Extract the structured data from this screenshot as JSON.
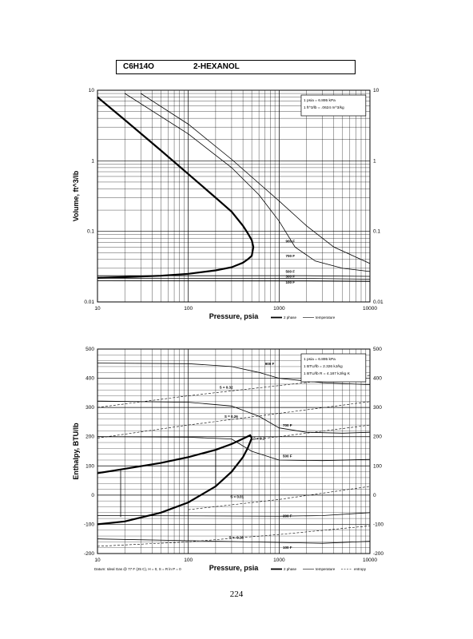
{
  "header": {
    "formula": "C6H14O",
    "name": "2-HEXANOL"
  },
  "page_number": "224",
  "chart_data": [
    {
      "type": "line",
      "title": "",
      "xlabel": "Pressure,  psia",
      "ylabel": "Volume, ft^3/lb",
      "xscale": "log",
      "yscale": "log",
      "xlim": [
        10,
        10000
      ],
      "ylim": [
        0.01,
        10
      ],
      "xticks": [
        "10",
        "100",
        "1000",
        "10000"
      ],
      "yticks": [
        "0.01",
        "0.1",
        "1",
        "10"
      ],
      "yticks_right": [
        "0.01",
        "0.1",
        "1",
        "10"
      ],
      "grid": true,
      "conversions": [
        "1 psia  =  6.895 kPa",
        "1 ft^3/lb  =  .0624 m^3/kg"
      ],
      "legend": {
        "placement": "bottom-right",
        "items": [
          "2 phase",
          "temperature"
        ]
      },
      "series": [
        {
          "kind": "2 phase",
          "x": [
            10,
            20,
            50,
            100,
            200,
            300,
            400,
            450,
            500,
            520,
            500,
            450,
            400,
            300,
            200,
            100,
            50,
            20,
            10
          ],
          "y": [
            8,
            3.8,
            1.4,
            0.65,
            0.3,
            0.19,
            0.12,
            0.095,
            0.075,
            0.06,
            0.045,
            0.04,
            0.036,
            0.031,
            0.028,
            0.025,
            0.0235,
            0.0225,
            0.022
          ]
        },
        {
          "name": "900 F",
          "x": [
            30,
            100,
            300,
            600,
            1000,
            2000,
            4000,
            10000
          ],
          "y": [
            9,
            3.3,
            1.05,
            0.48,
            0.27,
            0.12,
            0.06,
            0.035
          ]
        },
        {
          "name": "700 F",
          "x": [
            20,
            100,
            300,
            600,
            1000,
            1500,
            2500,
            5000,
            10000
          ],
          "y": [
            9,
            2.4,
            0.8,
            0.33,
            0.14,
            0.06,
            0.038,
            0.03,
            0.027
          ]
        },
        {
          "name": "500 F",
          "x": [
            10,
            2000,
            10000
          ],
          "y": [
            0.0235,
            0.0235,
            0.023
          ]
        },
        {
          "name": "300 F",
          "x": [
            10,
            2000,
            10000
          ],
          "y": [
            0.0217,
            0.0216,
            0.021
          ]
        },
        {
          "name": "100 F",
          "x": [
            10,
            2000,
            10000
          ],
          "y": [
            0.0199,
            0.0198,
            0.0195
          ]
        }
      ]
    },
    {
      "type": "line",
      "title": "",
      "xlabel": "Pressure,  psia",
      "ylabel": "Enthalpy, BTU/lb",
      "xscale": "log",
      "yscale": "linear",
      "xlim": [
        10,
        10000
      ],
      "ylim": [
        -200,
        500
      ],
      "xticks": [
        "10",
        "100",
        "1000",
        "10000"
      ],
      "yticks": [
        "-200",
        "-100",
        "0",
        "100",
        "200",
        "300",
        "400",
        "500"
      ],
      "yticks_right": [
        "-200",
        "-100",
        "0",
        "100",
        "200",
        "300",
        "400",
        "500"
      ],
      "grid": true,
      "conversions": [
        "1 psia  =  6.895 kPa",
        "1 BTU/lb  =  2.326 kJ/kg",
        "1 BTU/lb R  =  4.187 kJ/kg K"
      ],
      "legend": {
        "placement": "bottom-right",
        "items": [
          "2 phase",
          "temperature",
          "entropy"
        ]
      },
      "datum": "Datum: Ideal Gas @ 77 F (25 C),  H = 0,  S = R ln P = 0",
      "series": [
        {
          "kind": "2 phase",
          "x": [
            10,
            20,
            50,
            100,
            200,
            300,
            400,
            480,
            500,
            450,
            400,
            300,
            200,
            100,
            50,
            20,
            10
          ],
          "y": [
            75,
            90,
            110,
            130,
            155,
            175,
            193,
            205,
            195,
            160,
            130,
            80,
            30,
            -25,
            -60,
            -90,
            -100
          ]
        },
        {
          "name": "900 F",
          "x": [
            10,
            100,
            300,
            600,
            1000,
            3000,
            10000
          ],
          "y": [
            452,
            450,
            440,
            420,
            400,
            385,
            378
          ]
        },
        {
          "name": "700 F",
          "x": [
            10,
            100,
            300,
            600,
            1000,
            2000,
            5000,
            10000
          ],
          "y": [
            322,
            318,
            305,
            270,
            230,
            215,
            212,
            215
          ]
        },
        {
          "name": "500 F",
          "x": [
            10,
            100,
            300,
            500,
            1000,
            3000,
            10000
          ],
          "y": [
            200,
            198,
            192,
            150,
            120,
            118,
            122
          ]
        },
        {
          "name": "300 F",
          "x": [
            10,
            1000,
            3000,
            10000
          ],
          "y": [
            -70,
            -72,
            -70,
            -60
          ]
        },
        {
          "name": "100 F",
          "x": [
            10,
            1000,
            3000,
            10000
          ],
          "y": [
            -150,
            -162,
            -165,
            -158
          ]
        },
        {
          "name": "S = 0.32",
          "kind": "entropy",
          "x": [
            10,
            100,
            1000,
            10000
          ],
          "y": [
            300,
            340,
            375,
            410
          ]
        },
        {
          "name": "S = 0.26",
          "kind": "entropy",
          "x": [
            10,
            100,
            1000,
            10000
          ],
          "y": [
            195,
            240,
            280,
            320
          ]
        },
        {
          "name": "S = 0.2",
          "kind": "entropy",
          "x": [
            500,
            1000,
            10000
          ],
          "y": [
            190,
            200,
            240
          ]
        },
        {
          "name": "S = 0.01",
          "kind": "entropy",
          "x": [
            100,
            1000,
            10000
          ],
          "y": [
            -50,
            -15,
            30
          ]
        },
        {
          "name": "S = -0.16",
          "kind": "entropy",
          "x": [
            10,
            100,
            1000,
            10000
          ],
          "y": [
            -175,
            -160,
            -135,
            -105
          ]
        }
      ],
      "vertical_lines": [
        {
          "x": 18,
          "y": [
            -75,
            90
          ]
        },
        {
          "x": 200,
          "y": [
            30,
            155
          ]
        }
      ]
    }
  ]
}
